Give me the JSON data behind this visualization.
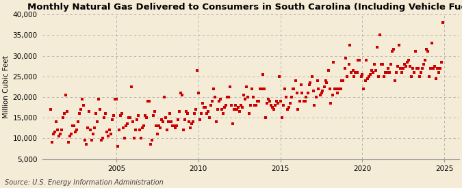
{
  "title": "Monthly Natural Gas Delivered to Consumers in South Carolina (Including Vehicle Fuel)",
  "ylabel": "Million Cubic Feet",
  "source": "Source: U.S. Energy Information Administration",
  "background_color": "#f5ecd7",
  "dot_color": "#cc0000",
  "grid_color": "#aaaaaa",
  "ylim": [
    5000,
    40000
  ],
  "yticks": [
    5000,
    10000,
    15000,
    20000,
    25000,
    30000,
    35000,
    40000
  ],
  "xlim_start": 2000.5,
  "xlim_end": 2025.9,
  "xticks": [
    2005,
    2010,
    2015,
    2020,
    2025
  ],
  "title_fontsize": 9.5,
  "label_fontsize": 7.5,
  "tick_fontsize": 7.5,
  "source_fontsize": 7.0,
  "data_points": [
    [
      2001.0,
      17000
    ],
    [
      2001.08,
      9000
    ],
    [
      2001.17,
      11000
    ],
    [
      2001.25,
      11500
    ],
    [
      2001.33,
      14000
    ],
    [
      2001.42,
      12000
    ],
    [
      2001.5,
      10500
    ],
    [
      2001.58,
      11000
    ],
    [
      2001.67,
      12000
    ],
    [
      2001.75,
      15000
    ],
    [
      2001.83,
      16000
    ],
    [
      2001.92,
      20500
    ],
    [
      2002.0,
      16500
    ],
    [
      2002.08,
      9000
    ],
    [
      2002.17,
      10500
    ],
    [
      2002.25,
      11000
    ],
    [
      2002.33,
      13000
    ],
    [
      2002.42,
      13000
    ],
    [
      2002.5,
      11500
    ],
    [
      2002.58,
      12000
    ],
    [
      2002.67,
      14000
    ],
    [
      2002.75,
      16000
    ],
    [
      2002.83,
      17000
    ],
    [
      2002.92,
      19500
    ],
    [
      2003.0,
      18000
    ],
    [
      2003.08,
      9500
    ],
    [
      2003.17,
      8500
    ],
    [
      2003.25,
      12500
    ],
    [
      2003.33,
      16500
    ],
    [
      2003.42,
      12000
    ],
    [
      2003.5,
      9500
    ],
    [
      2003.58,
      11000
    ],
    [
      2003.67,
      12500
    ],
    [
      2003.75,
      16000
    ],
    [
      2003.83,
      14000
    ],
    [
      2003.92,
      19500
    ],
    [
      2004.0,
      17000
    ],
    [
      2004.08,
      9500
    ],
    [
      2004.17,
      10000
    ],
    [
      2004.25,
      15000
    ],
    [
      2004.33,
      16000
    ],
    [
      2004.42,
      11500
    ],
    [
      2004.5,
      10500
    ],
    [
      2004.58,
      12000
    ],
    [
      2004.67,
      11000
    ],
    [
      2004.75,
      14500
    ],
    [
      2004.83,
      15500
    ],
    [
      2004.92,
      19500
    ],
    [
      2005.0,
      19500
    ],
    [
      2005.08,
      8000
    ],
    [
      2005.17,
      12000
    ],
    [
      2005.25,
      15500
    ],
    [
      2005.33,
      16000
    ],
    [
      2005.42,
      12500
    ],
    [
      2005.5,
      10000
    ],
    [
      2005.58,
      13000
    ],
    [
      2005.67,
      13500
    ],
    [
      2005.75,
      15000
    ],
    [
      2005.83,
      15000
    ],
    [
      2005.92,
      22500
    ],
    [
      2006.0,
      14000
    ],
    [
      2006.08,
      10000
    ],
    [
      2006.17,
      12000
    ],
    [
      2006.25,
      14500
    ],
    [
      2006.33,
      15500
    ],
    [
      2006.42,
      12000
    ],
    [
      2006.5,
      10000
    ],
    [
      2006.58,
      12500
    ],
    [
      2006.67,
      13000
    ],
    [
      2006.75,
      15500
    ],
    [
      2006.83,
      15000
    ],
    [
      2006.92,
      19000
    ],
    [
      2007.0,
      19000
    ],
    [
      2007.08,
      8500
    ],
    [
      2007.17,
      9500
    ],
    [
      2007.25,
      15500
    ],
    [
      2007.33,
      16500
    ],
    [
      2007.42,
      13000
    ],
    [
      2007.5,
      11000
    ],
    [
      2007.58,
      13000
    ],
    [
      2007.67,
      12500
    ],
    [
      2007.75,
      14500
    ],
    [
      2007.83,
      14000
    ],
    [
      2007.92,
      20000
    ],
    [
      2008.0,
      15000
    ],
    [
      2008.08,
      12000
    ],
    [
      2008.17,
      14000
    ],
    [
      2008.25,
      16000
    ],
    [
      2008.33,
      14000
    ],
    [
      2008.42,
      13000
    ],
    [
      2008.5,
      13000
    ],
    [
      2008.58,
      12500
    ],
    [
      2008.67,
      13000
    ],
    [
      2008.75,
      14500
    ],
    [
      2008.83,
      16500
    ],
    [
      2008.92,
      21000
    ],
    [
      2009.0,
      20500
    ],
    [
      2009.08,
      12000
    ],
    [
      2009.17,
      14500
    ],
    [
      2009.25,
      16500
    ],
    [
      2009.33,
      16000
    ],
    [
      2009.42,
      14000
    ],
    [
      2009.5,
      12500
    ],
    [
      2009.58,
      13500
    ],
    [
      2009.67,
      14000
    ],
    [
      2009.75,
      16000
    ],
    [
      2009.83,
      17000
    ],
    [
      2009.92,
      26500
    ],
    [
      2010.0,
      21000
    ],
    [
      2010.08,
      14500
    ],
    [
      2010.17,
      16000
    ],
    [
      2010.25,
      18500
    ],
    [
      2010.33,
      17500
    ],
    [
      2010.42,
      17500
    ],
    [
      2010.5,
      16000
    ],
    [
      2010.58,
      16500
    ],
    [
      2010.67,
      15000
    ],
    [
      2010.75,
      18000
    ],
    [
      2010.83,
      19000
    ],
    [
      2010.92,
      22000
    ],
    [
      2011.0,
      20000
    ],
    [
      2011.08,
      14000
    ],
    [
      2011.17,
      17000
    ],
    [
      2011.25,
      19000
    ],
    [
      2011.33,
      19500
    ],
    [
      2011.42,
      17000
    ],
    [
      2011.5,
      16000
    ],
    [
      2011.58,
      17500
    ],
    [
      2011.67,
      18000
    ],
    [
      2011.75,
      20000
    ],
    [
      2011.83,
      20000
    ],
    [
      2011.92,
      22500
    ],
    [
      2012.0,
      18000
    ],
    [
      2012.08,
      13500
    ],
    [
      2012.17,
      17000
    ],
    [
      2012.25,
      18000
    ],
    [
      2012.33,
      17000
    ],
    [
      2012.42,
      17500
    ],
    [
      2012.5,
      16500
    ],
    [
      2012.58,
      18000
    ],
    [
      2012.67,
      17500
    ],
    [
      2012.75,
      20500
    ],
    [
      2012.83,
      19500
    ],
    [
      2012.92,
      22500
    ],
    [
      2013.0,
      20000
    ],
    [
      2013.08,
      16000
    ],
    [
      2013.17,
      18000
    ],
    [
      2013.25,
      22000
    ],
    [
      2013.33,
      20000
    ],
    [
      2013.42,
      18000
    ],
    [
      2013.5,
      18000
    ],
    [
      2013.58,
      19000
    ],
    [
      2013.67,
      19000
    ],
    [
      2013.75,
      22000
    ],
    [
      2013.83,
      22000
    ],
    [
      2013.92,
      25500
    ],
    [
      2014.0,
      22000
    ],
    [
      2014.08,
      15000
    ],
    [
      2014.17,
      18500
    ],
    [
      2014.25,
      19500
    ],
    [
      2014.33,
      19000
    ],
    [
      2014.42,
      18000
    ],
    [
      2014.5,
      17500
    ],
    [
      2014.58,
      17000
    ],
    [
      2014.67,
      18000
    ],
    [
      2014.75,
      19000
    ],
    [
      2014.83,
      18500
    ],
    [
      2014.92,
      25000
    ],
    [
      2015.0,
      19000
    ],
    [
      2015.08,
      15000
    ],
    [
      2015.17,
      18000
    ],
    [
      2015.25,
      22000
    ],
    [
      2015.33,
      20000
    ],
    [
      2015.42,
      17000
    ],
    [
      2015.5,
      17500
    ],
    [
      2015.58,
      18500
    ],
    [
      2015.67,
      20000
    ],
    [
      2015.75,
      22000
    ],
    [
      2015.83,
      22000
    ],
    [
      2015.92,
      24000
    ],
    [
      2016.0,
      21000
    ],
    [
      2016.08,
      17000
    ],
    [
      2016.17,
      19000
    ],
    [
      2016.25,
      23000
    ],
    [
      2016.33,
      21000
    ],
    [
      2016.42,
      19000
    ],
    [
      2016.5,
      19000
    ],
    [
      2016.58,
      20000
    ],
    [
      2016.67,
      21000
    ],
    [
      2016.75,
      23000
    ],
    [
      2016.83,
      23500
    ],
    [
      2016.92,
      25000
    ],
    [
      2017.0,
      21500
    ],
    [
      2017.08,
      18000
    ],
    [
      2017.17,
      20000
    ],
    [
      2017.25,
      24000
    ],
    [
      2017.33,
      22000
    ],
    [
      2017.42,
      20500
    ],
    [
      2017.5,
      21000
    ],
    [
      2017.58,
      21500
    ],
    [
      2017.67,
      22500
    ],
    [
      2017.75,
      24000
    ],
    [
      2017.83,
      23500
    ],
    [
      2017.92,
      26500
    ],
    [
      2018.0,
      22000
    ],
    [
      2018.08,
      18500
    ],
    [
      2018.17,
      20500
    ],
    [
      2018.25,
      28500
    ],
    [
      2018.33,
      22000
    ],
    [
      2018.42,
      22000
    ],
    [
      2018.5,
      21000
    ],
    [
      2018.58,
      22000
    ],
    [
      2018.67,
      22000
    ],
    [
      2018.75,
      24000
    ],
    [
      2018.83,
      24000
    ],
    [
      2018.92,
      27000
    ],
    [
      2019.0,
      29500
    ],
    [
      2019.08,
      25000
    ],
    [
      2019.17,
      28000
    ],
    [
      2019.25,
      32500
    ],
    [
      2019.33,
      26000
    ],
    [
      2019.42,
      26500
    ],
    [
      2019.5,
      25000
    ],
    [
      2019.58,
      26000
    ],
    [
      2019.67,
      26000
    ],
    [
      2019.75,
      29000
    ],
    [
      2019.83,
      29000
    ],
    [
      2019.92,
      25000
    ],
    [
      2020.0,
      25500
    ],
    [
      2020.08,
      22000
    ],
    [
      2020.17,
      24000
    ],
    [
      2020.25,
      29000
    ],
    [
      2020.33,
      24500
    ],
    [
      2020.42,
      25000
    ],
    [
      2020.5,
      25500
    ],
    [
      2020.58,
      26500
    ],
    [
      2020.67,
      26000
    ],
    [
      2020.75,
      28000
    ],
    [
      2020.83,
      26500
    ],
    [
      2020.92,
      32000
    ],
    [
      2021.0,
      25000
    ],
    [
      2021.08,
      35000
    ],
    [
      2021.17,
      28000
    ],
    [
      2021.25,
      28000
    ],
    [
      2021.33,
      25000
    ],
    [
      2021.42,
      26000
    ],
    [
      2021.5,
      26000
    ],
    [
      2021.58,
      27000
    ],
    [
      2021.67,
      26000
    ],
    [
      2021.75,
      28000
    ],
    [
      2021.83,
      31000
    ],
    [
      2021.92,
      31500
    ],
    [
      2022.0,
      24000
    ],
    [
      2022.08,
      26000
    ],
    [
      2022.17,
      27500
    ],
    [
      2022.25,
      32500
    ],
    [
      2022.33,
      27000
    ],
    [
      2022.42,
      26000
    ],
    [
      2022.5,
      27000
    ],
    [
      2022.58,
      28000
    ],
    [
      2022.67,
      27500
    ],
    [
      2022.75,
      28500
    ],
    [
      2022.83,
      29000
    ],
    [
      2022.92,
      27500
    ],
    [
      2023.0,
      25000
    ],
    [
      2023.08,
      27000
    ],
    [
      2023.17,
      26000
    ],
    [
      2023.25,
      31000
    ],
    [
      2023.33,
      27000
    ],
    [
      2023.42,
      27000
    ],
    [
      2023.5,
      25000
    ],
    [
      2023.58,
      26000
    ],
    [
      2023.67,
      27000
    ],
    [
      2023.75,
      28000
    ],
    [
      2023.83,
      29000
    ],
    [
      2023.92,
      31500
    ],
    [
      2024.0,
      31000
    ],
    [
      2024.08,
      25000
    ],
    [
      2024.17,
      27000
    ],
    [
      2024.25,
      33000
    ],
    [
      2024.33,
      27000
    ],
    [
      2024.42,
      27500
    ],
    [
      2024.5,
      24500
    ],
    [
      2024.58,
      27000
    ],
    [
      2024.67,
      26000
    ],
    [
      2024.75,
      27000
    ],
    [
      2024.83,
      28500
    ],
    [
      2024.92,
      38000
    ]
  ]
}
